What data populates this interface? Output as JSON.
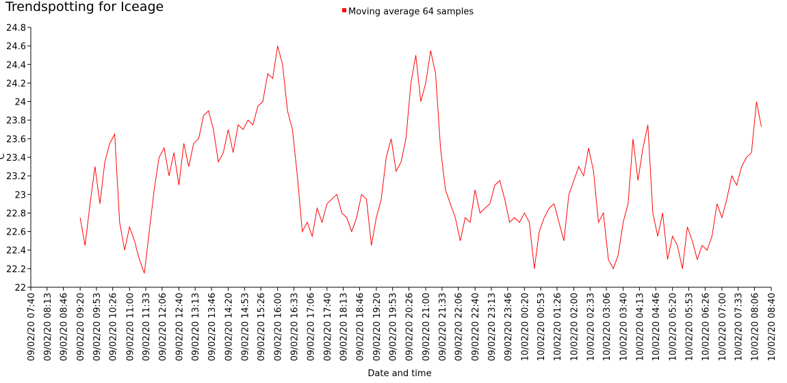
{
  "chart_data": {
    "type": "line",
    "title": "Trendspotting for Iceage",
    "x_label": "Date and time",
    "y_label": "°C",
    "x": [
      "09/02/20 09:20",
      "09/02/20 09:30",
      "09/02/20 09:40",
      "09/02/20 09:50",
      "09/02/20 10:00",
      "09/02/20 10:10",
      "09/02/20 10:20",
      "09/02/20 10:30",
      "09/02/20 10:40",
      "09/02/20 10:50",
      "09/02/20 11:00",
      "09/02/20 11:10",
      "09/02/20 11:20",
      "09/02/20 11:30",
      "09/02/20 11:40",
      "09/02/20 11:50",
      "09/02/20 12:00",
      "09/02/20 12:10",
      "09/02/20 12:20",
      "09/02/20 12:30",
      "09/02/20 12:40",
      "09/02/20 12:50",
      "09/02/20 13:00",
      "09/02/20 13:10",
      "09/02/20 13:20",
      "09/02/20 13:30",
      "09/02/20 13:40",
      "09/02/20 13:50",
      "09/02/20 14:00",
      "09/02/20 14:10",
      "09/02/20 14:20",
      "09/02/20 14:30",
      "09/02/20 14:40",
      "09/02/20 14:50",
      "09/02/20 15:00",
      "09/02/20 15:10",
      "09/02/20 15:20",
      "09/02/20 15:30",
      "09/02/20 15:40",
      "09/02/20 15:50",
      "09/02/20 16:00",
      "09/02/20 16:10",
      "09/02/20 16:20",
      "09/02/20 16:30",
      "09/02/20 16:40",
      "09/02/20 16:50",
      "09/02/20 17:00",
      "09/02/20 17:10",
      "09/02/20 17:20",
      "09/02/20 17:30",
      "09/02/20 17:40",
      "09/02/20 17:50",
      "09/02/20 18:00",
      "09/02/20 18:10",
      "09/02/20 18:20",
      "09/02/20 18:30",
      "09/02/20 18:40",
      "09/02/20 18:50",
      "09/02/20 19:00",
      "09/02/20 19:10",
      "09/02/20 19:20",
      "09/02/20 19:30",
      "09/02/20 19:40",
      "09/02/20 19:50",
      "09/02/20 20:00",
      "09/02/20 20:10",
      "09/02/20 20:20",
      "09/02/20 20:30",
      "09/02/20 20:40",
      "09/02/20 20:50",
      "09/02/20 21:00",
      "09/02/20 21:10",
      "09/02/20 21:20",
      "09/02/20 21:30",
      "09/02/20 21:40",
      "09/02/20 21:50",
      "09/02/20 22:00",
      "09/02/20 22:10",
      "09/02/20 22:20",
      "09/02/20 22:30",
      "09/02/20 22:40",
      "09/02/20 22:50",
      "09/02/20 23:00",
      "09/02/20 23:10",
      "09/02/20 23:20",
      "09/02/20 23:30",
      "09/02/20 23:40",
      "09/02/20 23:50",
      "10/02/20 00:00",
      "10/02/20 00:10",
      "10/02/20 00:20",
      "10/02/20 00:30",
      "10/02/20 00:40",
      "10/02/20 00:50",
      "10/02/20 01:00",
      "10/02/20 01:10",
      "10/02/20 01:20",
      "10/02/20 01:30",
      "10/02/20 01:40",
      "10/02/20 01:50",
      "10/02/20 02:00",
      "10/02/20 02:10",
      "10/02/20 02:20",
      "10/02/20 02:30",
      "10/02/20 02:40",
      "10/02/20 02:50",
      "10/02/20 03:00",
      "10/02/20 03:10",
      "10/02/20 03:20",
      "10/02/20 03:30",
      "10/02/20 03:40",
      "10/02/20 03:50",
      "10/02/20 04:00",
      "10/02/20 04:10",
      "10/02/20 04:20",
      "10/02/20 04:30",
      "10/02/20 04:40",
      "10/02/20 04:50",
      "10/02/20 05:00",
      "10/02/20 05:10",
      "10/02/20 05:20",
      "10/02/20 05:30",
      "10/02/20 05:40",
      "10/02/20 05:50",
      "10/02/20 06:00",
      "10/02/20 06:10",
      "10/02/20 06:20",
      "10/02/20 06:30",
      "10/02/20 06:40",
      "10/02/20 06:50",
      "10/02/20 07:00",
      "10/02/20 07:10",
      "10/02/20 07:20",
      "10/02/20 07:30",
      "10/02/20 07:40",
      "10/02/20 07:50",
      "10/02/20 08:00",
      "10/02/20 08:10",
      "10/02/20 08:20"
    ],
    "series": [
      {
        "name": "Moving average 64 samples",
        "color": "#ff0000",
        "values": [
          22.75,
          22.45,
          22.9,
          23.3,
          22.9,
          23.35,
          23.55,
          23.65,
          22.7,
          22.4,
          22.65,
          22.5,
          22.3,
          22.15,
          22.6,
          23.05,
          23.4,
          23.5,
          23.2,
          23.45,
          23.1,
          23.55,
          23.3,
          23.55,
          23.6,
          23.85,
          23.9,
          23.7,
          23.35,
          23.45,
          23.7,
          23.45,
          23.75,
          23.7,
          23.8,
          23.75,
          23.95,
          24.0,
          24.3,
          24.25,
          24.6,
          24.4,
          23.9,
          23.7,
          23.2,
          22.6,
          22.7,
          22.55,
          22.85,
          22.7,
          22.9,
          22.95,
          23.0,
          22.8,
          22.75,
          22.6,
          22.75,
          23.0,
          22.95,
          22.45,
          22.75,
          22.95,
          23.4,
          23.6,
          23.25,
          23.35,
          23.6,
          24.2,
          24.5,
          24.0,
          24.2,
          24.55,
          24.3,
          23.5,
          23.05,
          22.9,
          22.75,
          22.5,
          22.75,
          22.7,
          23.05,
          22.8,
          22.85,
          22.9,
          23.1,
          23.15,
          22.95,
          22.7,
          22.75,
          22.7,
          22.8,
          22.7,
          22.2,
          22.6,
          22.75,
          22.85,
          22.9,
          22.7,
          22.5,
          23.0,
          23.15,
          23.3,
          23.2,
          23.5,
          23.25,
          22.7,
          22.8,
          22.3,
          22.2,
          22.35,
          22.7,
          22.9,
          23.6,
          23.15,
          23.5,
          23.75,
          22.8,
          22.55,
          22.8,
          22.3,
          22.55,
          22.45,
          22.2,
          22.65,
          22.5,
          22.3,
          22.45,
          22.4,
          22.55,
          22.9,
          22.75,
          22.95,
          23.2,
          23.1,
          23.3,
          23.4,
          23.45,
          24.0,
          23.73
        ]
      }
    ],
    "xlim": [
      "09/02/20 07:40",
      "10/02/20 08:40"
    ],
    "xticks": [
      "09/02/20 07:40",
      "09/02/20 08:13",
      "09/02/20 08:46",
      "09/02/20 09:20",
      "09/02/20 09:53",
      "09/02/20 10:26",
      "09/02/20 11:00",
      "09/02/20 11:33",
      "09/02/20 12:06",
      "09/02/20 12:40",
      "09/02/20 13:13",
      "09/02/20 13:46",
      "09/02/20 14:20",
      "09/02/20 14:53",
      "09/02/20 15:26",
      "09/02/20 16:00",
      "09/02/20 16:33",
      "09/02/20 17:06",
      "09/02/20 17:40",
      "09/02/20 18:13",
      "09/02/20 18:46",
      "09/02/20 19:20",
      "09/02/20 19:53",
      "09/02/20 20:26",
      "09/02/20 21:00",
      "09/02/20 21:33",
      "09/02/20 22:06",
      "09/02/20 22:40",
      "09/02/20 23:13",
      "09/02/20 23:46",
      "10/02/20 00:20",
      "10/02/20 00:53",
      "10/02/20 01:26",
      "10/02/20 02:00",
      "10/02/20 02:33",
      "10/02/20 03:06",
      "10/02/20 03:40",
      "10/02/20 04:13",
      "10/02/20 04:46",
      "10/02/20 05:20",
      "10/02/20 05:53",
      "10/02/20 06:26",
      "10/02/20 07:00",
      "10/02/20 07:33",
      "10/02/20 08:06",
      "10/02/20 08:40"
    ],
    "ylim": [
      22,
      24.8
    ],
    "yticks": [
      22,
      22.2,
      22.4,
      22.6,
      22.8,
      23,
      23.2,
      23.4,
      23.6,
      23.8,
      24,
      24.2,
      24.4,
      24.6,
      24.8
    ]
  }
}
